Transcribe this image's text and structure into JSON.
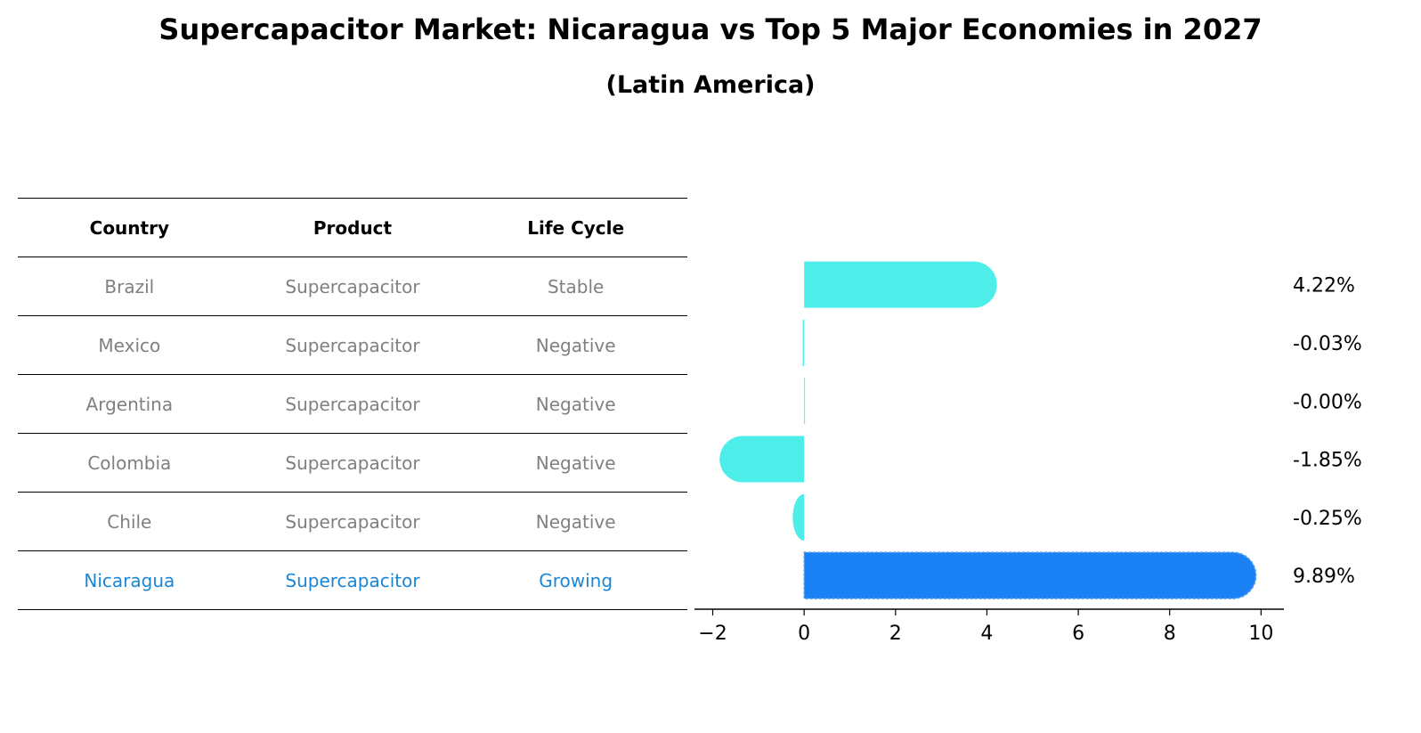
{
  "title": "Supercapacitor Market: Nicaragua vs Top 5 Major Economies in 2027",
  "subtitle": "(Latin America)",
  "table": {
    "headers": [
      "Country",
      "Product",
      "Life Cycle"
    ],
    "rows": [
      [
        "Brazil",
        "Supercapacitor",
        "Stable"
      ],
      [
        "Mexico",
        "Supercapacitor",
        "Negative"
      ],
      [
        "Argentina",
        "Supercapacitor",
        "Negative"
      ],
      [
        "Colombia",
        "Supercapacitor",
        "Negative"
      ],
      [
        "Chile",
        "Supercapacitor",
        "Negative"
      ],
      [
        "Nicaragua",
        "Supercapacitor",
        "Growing"
      ]
    ],
    "highlight_row": 5
  },
  "chart_data": {
    "type": "bar",
    "orientation": "horizontal",
    "categories": [
      "Brazil",
      "Mexico",
      "Argentina",
      "Colombia",
      "Chile",
      "Nicaragua"
    ],
    "values": [
      4.22,
      -0.03,
      -0.0,
      -1.85,
      -0.25,
      9.89
    ],
    "value_labels": [
      "4.22%",
      "-0.03%",
      "-0.00%",
      "-1.85%",
      "-0.25%",
      "9.89%"
    ],
    "xlim": [
      -2.4,
      10.5
    ],
    "xticks": [
      -2,
      0,
      2,
      4,
      6,
      8,
      10
    ],
    "xtick_labels": [
      "−2",
      "0",
      "2",
      "4",
      "6",
      "8",
      "10"
    ],
    "colors": {
      "default": "#4deee9",
      "highlight": "#1a82f5"
    },
    "highlight_index": 5
  }
}
